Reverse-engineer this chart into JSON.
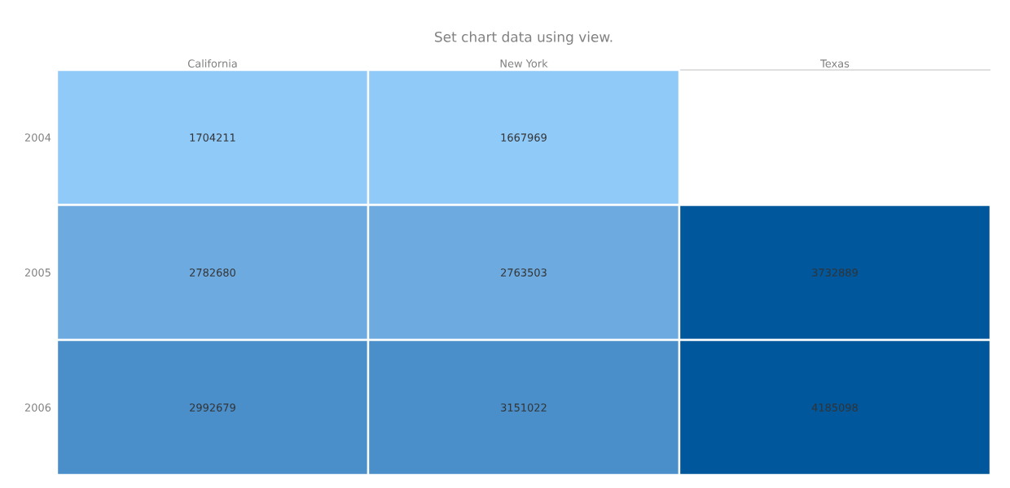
{
  "chart_data": {
    "type": "heatmap",
    "title": "Set chart data using view.",
    "categories": [
      "California",
      "New York",
      "Texas"
    ],
    "y_categories": [
      "2004",
      "2005",
      "2006"
    ],
    "cells": [
      [
        1704211,
        1667969,
        null
      ],
      [
        2782680,
        2763503,
        3732889
      ],
      [
        2992679,
        3151022,
        4185098
      ]
    ],
    "colors": [
      [
        "#90caf9",
        "#90caf9",
        null
      ],
      [
        "#6daae0",
        "#6daae0",
        "#01579b"
      ],
      [
        "#4a8fca",
        "#4a8fca",
        "#01579b"
      ]
    ],
    "data_labels": true
  }
}
